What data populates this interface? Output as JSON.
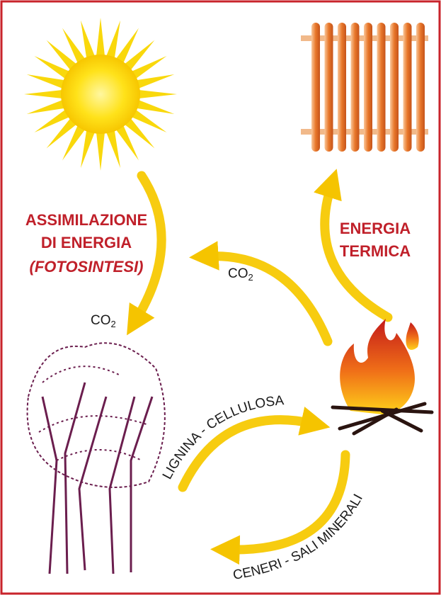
{
  "labels": {
    "assimilation": [
      "ASSIMILAZIONE",
      "DI ENERGIA"
    ],
    "photosynthesis": "(FOTOSINTESI)",
    "thermal": [
      "ENERGIA",
      "TERMICA"
    ],
    "co2_left": "CO2",
    "co2_center": "CO2",
    "lignin": "LIGNINA - CELLULOSA",
    "ashes": "CENERI - SALI MINERALI"
  }
}
